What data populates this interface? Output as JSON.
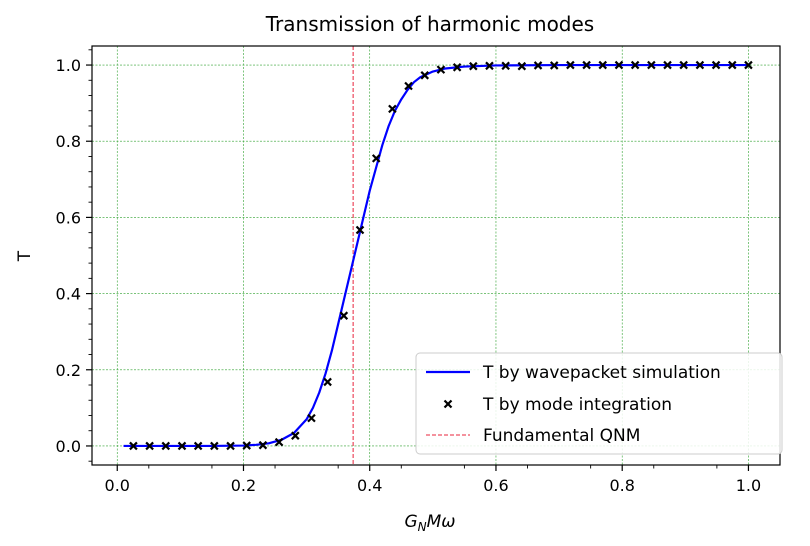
{
  "chart_data": {
    "type": "line",
    "title": "Transmission of harmonic modes",
    "xlabel": {
      "base": "G",
      "sub": "N",
      "rest": "Mω"
    },
    "ylabel": "T",
    "xlim": [
      -0.04,
      1.05
    ],
    "ylim": [
      -0.05,
      1.05
    ],
    "xticks": [
      0.0,
      0.2,
      0.4,
      0.6,
      0.8,
      1.0
    ],
    "xtick_labels": [
      "0.0",
      "0.2",
      "0.4",
      "0.6",
      "0.8",
      "1.0"
    ],
    "yticks": [
      0.0,
      0.2,
      0.4,
      0.6,
      0.8,
      1.0
    ],
    "ytick_labels": [
      "0.0",
      "0.2",
      "0.4",
      "0.6",
      "0.8",
      "1.0"
    ],
    "grid": true,
    "legend_position": "lower-right",
    "series": [
      {
        "name": "T by wavepacket simulation",
        "style": "line",
        "color": "#0000ff",
        "x": [
          0.01,
          0.05,
          0.1,
          0.15,
          0.2,
          0.22,
          0.24,
          0.26,
          0.28,
          0.3,
          0.31,
          0.32,
          0.33,
          0.34,
          0.35,
          0.36,
          0.37,
          0.38,
          0.39,
          0.4,
          0.41,
          0.42,
          0.43,
          0.44,
          0.45,
          0.46,
          0.47,
          0.48,
          0.5,
          0.52,
          0.55,
          0.6,
          0.7,
          0.8,
          0.9,
          1.0
        ],
        "y": [
          0.0,
          0.0,
          0.0,
          0.0,
          0.001,
          0.003,
          0.007,
          0.016,
          0.034,
          0.07,
          0.1,
          0.14,
          0.19,
          0.25,
          0.32,
          0.39,
          0.46,
          0.53,
          0.6,
          0.67,
          0.73,
          0.79,
          0.84,
          0.88,
          0.91,
          0.935,
          0.955,
          0.968,
          0.983,
          0.991,
          0.996,
          0.999,
          1.0,
          1.0,
          1.0,
          1.0
        ]
      },
      {
        "name": "T by mode integration",
        "style": "scatter",
        "color": "#000000",
        "x": [
          0.0256,
          0.0513,
          0.0769,
          0.1026,
          0.1282,
          0.1538,
          0.1795,
          0.2051,
          0.2308,
          0.2564,
          0.2821,
          0.3077,
          0.3333,
          0.359,
          0.3846,
          0.4103,
          0.4359,
          0.4615,
          0.4872,
          0.5128,
          0.5385,
          0.5641,
          0.5897,
          0.6154,
          0.641,
          0.6667,
          0.6923,
          0.7179,
          0.7436,
          0.7692,
          0.7949,
          0.8205,
          0.8462,
          0.8718,
          0.8974,
          0.9231,
          0.9487,
          0.9744,
          1.0
        ],
        "y": [
          0.0,
          0.0,
          0.0,
          0.0,
          0.0,
          0.0,
          0.0,
          0.001,
          0.002,
          0.01,
          0.027,
          0.073,
          0.168,
          0.342,
          0.567,
          0.755,
          0.885,
          0.945,
          0.973,
          0.988,
          0.994,
          0.997,
          0.998,
          0.998,
          0.997,
          0.999,
          0.999,
          1.0,
          1.0,
          1.0,
          1.0,
          1.0,
          1.0,
          1.0,
          1.0,
          1.0,
          1.0,
          1.0,
          1.0
        ]
      },
      {
        "name": "Fundamental QNM",
        "style": "vline",
        "color": "#e8243c",
        "x": 0.3737
      }
    ]
  }
}
